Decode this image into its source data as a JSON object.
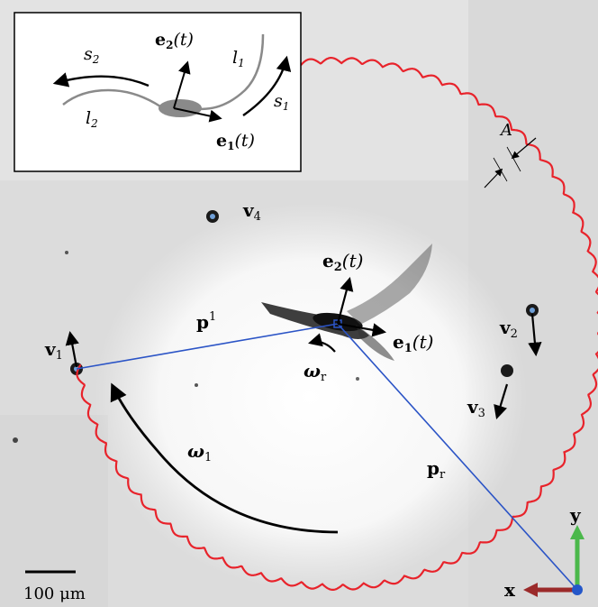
{
  "inset": {
    "e2": "e",
    "e2_sub": "2",
    "e2_arg": "(t)",
    "e1": "e",
    "e1_sub": "1",
    "e1_arg": "(t)",
    "s2": "s",
    "s2_sub": "2",
    "s1": "s",
    "s1_sub": "1",
    "l1": "l",
    "l1_sub": "1",
    "l2": "l",
    "l2_sub": "2"
  },
  "labels": {
    "A": "A",
    "v4": "v",
    "v4_sub": "4",
    "v1": "v",
    "v1_sub": "1",
    "v2": "v",
    "v2_sub": "2",
    "v3": "v",
    "v3_sub": "3",
    "e2": "e",
    "e2_sub": "2",
    "e2_arg": "(t)",
    "e1": "e",
    "e1_sub": "1",
    "e1_arg": "(t)",
    "p1": "p",
    "p1_sup": "1",
    "omega_r": "ω",
    "omega_r_sub": "r",
    "omega_1": "ω",
    "omega_1_sub": "1",
    "p_r": "p",
    "p_r_sub": "r"
  },
  "scale_bar": {
    "label": "100 μm"
  },
  "axes": {
    "x": "x",
    "y": "y"
  },
  "colors": {
    "wave": "#e8232b",
    "line": "#2b54c6",
    "y_axis": "#4bb84b",
    "x_axis": "#9b2a2a",
    "origin": "#2457c9"
  }
}
